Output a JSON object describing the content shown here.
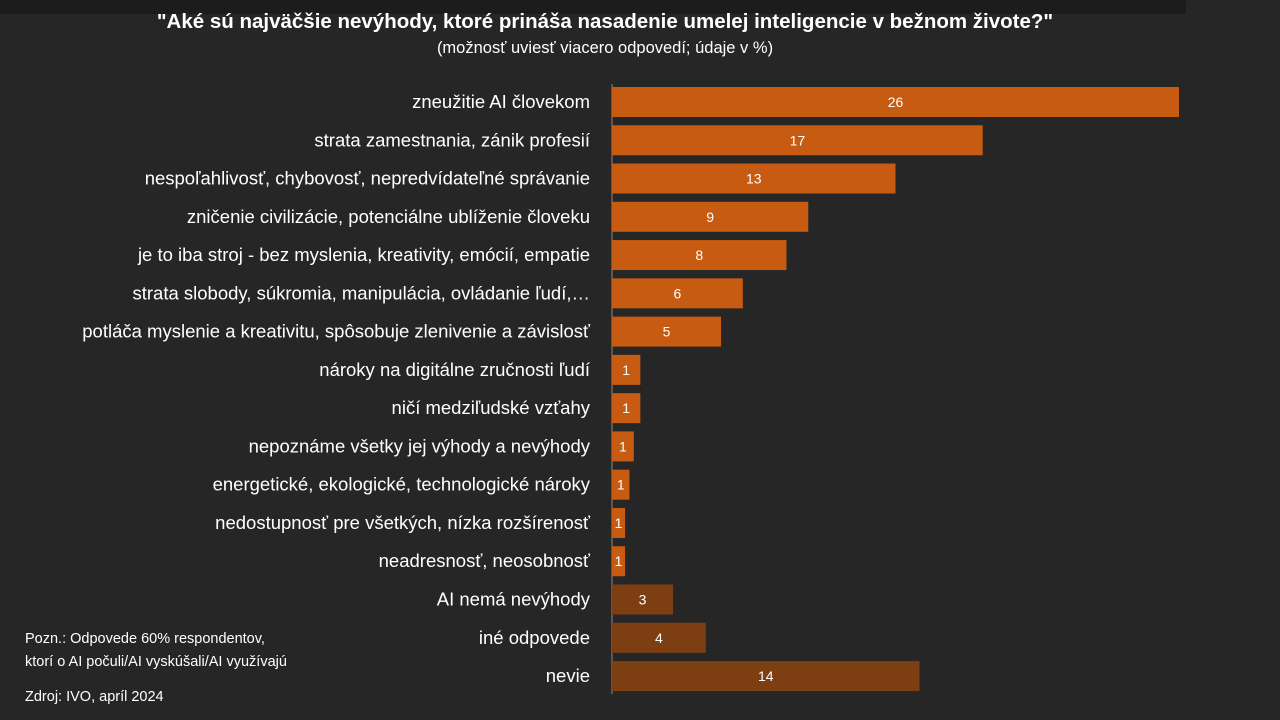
{
  "title": "\"Aké sú najväčšie nevýhody, ktoré prináša nasadenie umelej inteligencie v bežnom živote?\"",
  "subtitle": "(možnosť  uviesť viacero odpovedí;  údaje v %)",
  "notes": {
    "line1": "Pozn.: Odpovede 60% respondentov,",
    "line2": "ktorí o AI počuli/AI vyskúšali/AI využívajú",
    "source": "Zdroj: IVO, apríl 2024"
  },
  "colors": {
    "background": "#262626",
    "bar_primary": "#c65b11",
    "bar_secondary": "#7d3f12",
    "text": "#ffffff"
  },
  "chart_data": {
    "type": "bar",
    "orientation": "horizontal",
    "categories": [
      "zneužitie AI človekom",
      "strata zamestnania, zánik profesií",
      "nespoľahlivosť, chybovosť, nepredvídateľné správanie",
      "zničenie civilizácie, potenciálne ublíženie človeku",
      "je to iba stroj -  bez myslenia, kreativity,  emócií,  empatie",
      "strata slobody, súkromia, manipulácia, ovládanie ľudí,…",
      "potláča myslenie a kreativitu, spôsobuje zlenivenie a závislosť",
      "nároky na digitálne zručnosti ľudí",
      "ničí medziľudské vzťahy",
      "nepoznáme všetky jej výhody a nevýhody",
      "energetické, ekologické, technologické nároky",
      "nedostupnosť pre všetkých, nízka rozšírenosť",
      "neadresnosť, neosobnosť",
      "AI nemá nevýhody",
      "iné odpovede",
      "nevie"
    ],
    "values": [
      26,
      17,
      13,
      9,
      8,
      6,
      5,
      1.3,
      1.3,
      1.0,
      0.8,
      0.6,
      0.6,
      2.8,
      4.3,
      14.1
    ],
    "data_labels": [
      "26",
      "17",
      "13",
      "9",
      "8",
      "6",
      "5",
      "1",
      "1",
      "1",
      "1",
      "1",
      "1",
      "3",
      "4",
      "14"
    ],
    "bar_groups": [
      "primary",
      "primary",
      "primary",
      "primary",
      "primary",
      "primary",
      "primary",
      "primary",
      "primary",
      "primary",
      "primary",
      "primary",
      "primary",
      "secondary",
      "secondary",
      "secondary"
    ],
    "xlim": [
      0,
      26
    ],
    "grid": false,
    "legend": "none"
  }
}
